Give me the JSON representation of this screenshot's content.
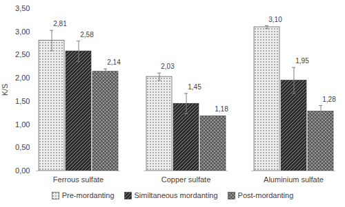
{
  "chart_data": {
    "type": "bar",
    "categories": [
      "Ferrous sulfate",
      "Copper sulfate",
      "Aluminium sulfate"
    ],
    "series": [
      {
        "name": "Pre-mordanting",
        "color": "#eeeeee",
        "values": [
          2.81,
          2.03,
          3.1
        ],
        "value_labels": [
          "2,81",
          "2,03",
          "3,10"
        ],
        "error": [
          0.22,
          0.08,
          0.03
        ]
      },
      {
        "name": "Similtaneous mordanting",
        "color": "#2b2b2b",
        "values": [
          2.58,
          1.45,
          1.95
        ],
        "value_labels": [
          "2,58",
          "1,45",
          "1,95"
        ],
        "error": [
          0.22,
          0.22,
          0.28
        ]
      },
      {
        "name": "Post-mordanting",
        "color": "#5a5a5a",
        "values": [
          2.14,
          1.18,
          1.28
        ],
        "value_labels": [
          "2,14",
          "1,18",
          "1,28"
        ],
        "error": [
          0.06,
          0.01,
          0.13
        ]
      }
    ],
    "y_label": "K/S",
    "ylim": [
      0,
      3.5
    ],
    "yticks": [
      {
        "value": 0,
        "label": "0,00"
      },
      {
        "value": 0.5,
        "label": "0,50"
      },
      {
        "value": 1,
        "label": "1,00"
      },
      {
        "value": 1.5,
        "label": "1,50"
      },
      {
        "value": 2,
        "label": "2,00"
      },
      {
        "value": 2.5,
        "label": "2,50"
      },
      {
        "value": 3,
        "label": "3,00"
      },
      {
        "value": 3.5,
        "label": "3,50"
      }
    ],
    "grid": false,
    "legend": "bottom",
    "data_labels": true
  }
}
